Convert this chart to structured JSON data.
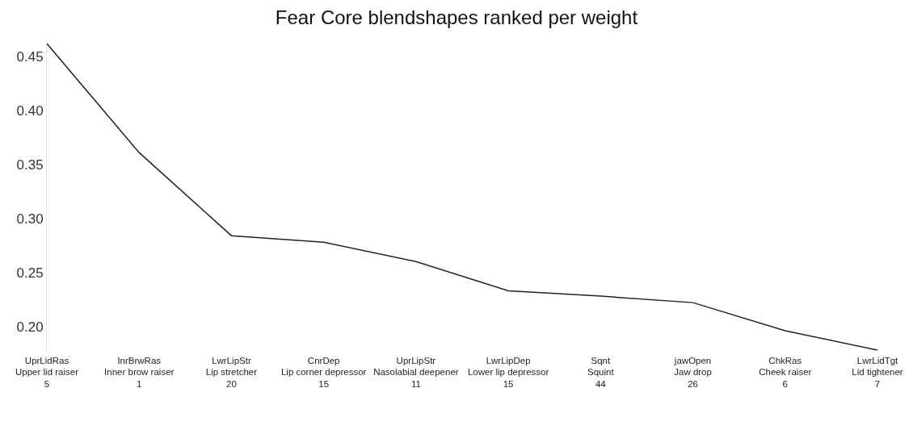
{
  "chart_data": {
    "type": "line",
    "title": "Fear Core blendshapes ranked per weight",
    "categories": [
      "UprLidRas\nUpper lid raiser\n5",
      "InrBrwRas\nInner brow raiser\n1",
      "LwrLipStr\nLip stretcher\n20",
      "CnrDep\nLip corner depressor\n15",
      "UprLipStr\nNasolabial deepener\n11",
      "LwrLipDep\nLower lip depressor\n15",
      "Sqnt\nSquint\n44",
      "jawOpen\nJaw drop\n26",
      "ChkRas\nCheek raiser\n6",
      "LwrLidTgt\nLid tightener\n7"
    ],
    "series": [
      {
        "color": "#222222",
        "values": [
          0.462,
          0.361,
          0.284,
          0.278,
          0.26,
          0.233,
          0.228,
          0.222,
          0.196,
          0.178
        ]
      }
    ],
    "ylim": [
      0.175,
      0.465
    ],
    "yticks": [
      {
        "value": 0.2,
        "label": "0.20"
      },
      0.25,
      {
        "value": 0.3,
        "label": "0.30"
      },
      0.35,
      {
        "value": 0.4,
        "label": "0.40"
      },
      0.45
    ],
    "grid": false,
    "marker": "none",
    "line_style": "solid"
  }
}
